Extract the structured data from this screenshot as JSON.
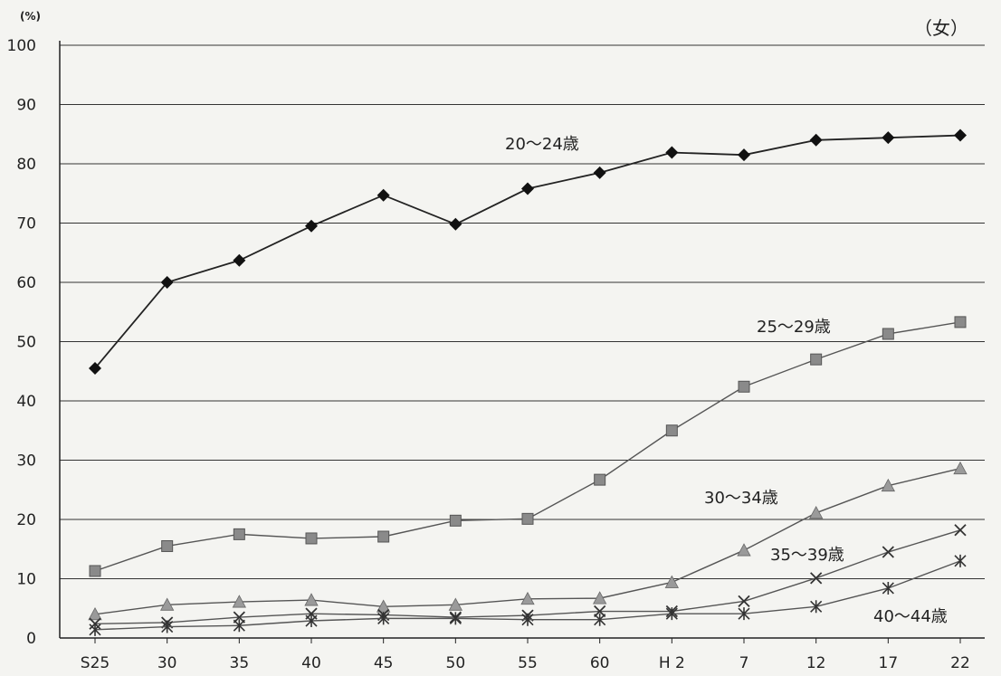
{
  "chart_data": {
    "type": "line",
    "title": "（女）",
    "unit_label": "(%)",
    "categories": [
      "S25",
      "30",
      "35",
      "40",
      "45",
      "50",
      "55",
      "60",
      "H 2",
      "7",
      "12",
      "17",
      "22"
    ],
    "y_ticks": [
      "0",
      "10",
      "20",
      "30",
      "40",
      "50",
      "60",
      "70",
      "80",
      "90",
      "100"
    ],
    "ylim": [
      0,
      100
    ],
    "grid": true,
    "series": [
      {
        "name": "20～24歳",
        "marker": "diamond",
        "color": "#222222",
        "values": [
          45.5,
          60.0,
          63.7,
          69.5,
          74.7,
          69.8,
          75.8,
          78.5,
          81.9,
          81.5,
          84.0,
          84.4,
          84.8
        ]
      },
      {
        "name": "25～29歳",
        "marker": "square",
        "color": "#888888",
        "values": [
          11.3,
          15.5,
          17.5,
          16.8,
          17.1,
          19.8,
          20.1,
          26.7,
          35.0,
          42.4,
          47.0,
          51.3,
          53.3
        ]
      },
      {
        "name": "30～34歳",
        "marker": "triangle",
        "color": "#999999",
        "values": [
          4.0,
          5.6,
          6.1,
          6.4,
          5.3,
          5.6,
          6.6,
          6.7,
          9.4,
          14.8,
          21.1,
          25.7,
          28.6
        ]
      },
      {
        "name": "35～39歳",
        "marker": "x",
        "color": "#444444",
        "values": [
          2.4,
          2.6,
          3.5,
          4.1,
          3.9,
          3.5,
          3.8,
          4.5,
          4.5,
          6.2,
          10.1,
          14.5,
          18.2
        ]
      },
      {
        "name": "40～44歳",
        "marker": "star",
        "color": "#555555",
        "values": [
          1.4,
          1.9,
          2.1,
          2.9,
          3.3,
          3.3,
          3.1,
          3.1,
          4.1,
          4.1,
          5.3,
          8.4,
          13.0
        ]
      }
    ]
  }
}
